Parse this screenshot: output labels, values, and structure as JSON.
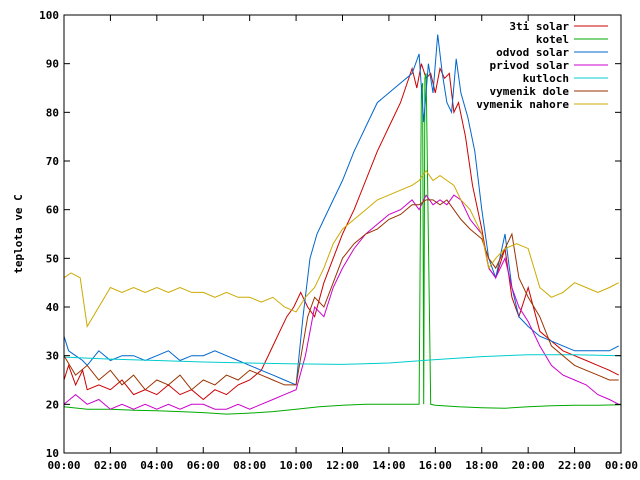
{
  "chart_data": {
    "type": "line",
    "title": "",
    "xlabel": "",
    "ylabel": "teplota ve C",
    "xlim": [
      0,
      24
    ],
    "ylim": [
      10,
      100
    ],
    "grid": false,
    "legend_position": "top-right",
    "x_tick_labels": [
      "00:00",
      "02:00",
      "04:00",
      "06:00",
      "08:00",
      "10:00",
      "12:00",
      "14:00",
      "16:00",
      "18:00",
      "20:00",
      "22:00",
      "00:00"
    ],
    "y_tick_labels": [
      "10",
      "20",
      "30",
      "40",
      "50",
      "60",
      "70",
      "80",
      "90",
      "100"
    ],
    "series": [
      {
        "name": "3ti solar",
        "color": "#cc0000",
        "x": [
          0,
          0.2,
          0.5,
          0.8,
          1.0,
          1.5,
          2.0,
          2.5,
          3.0,
          3.5,
          4.0,
          4.5,
          5.0,
          5.5,
          6.0,
          6.5,
          7.0,
          7.5,
          8.0,
          8.5,
          9.0,
          9.3,
          9.6,
          9.9,
          10.2,
          10.5,
          10.8,
          11.2,
          11.6,
          12.0,
          12.5,
          13.0,
          13.5,
          14.0,
          14.5,
          15.0,
          15.2,
          15.4,
          15.6,
          15.8,
          16.0,
          16.2,
          16.4,
          16.6,
          16.8,
          17.0,
          17.3,
          17.6,
          18.0,
          18.3,
          18.6,
          19.0,
          19.3,
          19.6,
          20.0,
          20.5,
          21.0,
          21.5,
          22.0,
          22.5,
          23.0,
          23.5,
          23.9
        ],
        "values": [
          25,
          28,
          24,
          27,
          23,
          24,
          23,
          25,
          22,
          23,
          22,
          24,
          22,
          23,
          21,
          23,
          22,
          24,
          25,
          27,
          32,
          35,
          38,
          40,
          43,
          40,
          38,
          45,
          50,
          55,
          60,
          66,
          72,
          77,
          82,
          89,
          85,
          90,
          87,
          88,
          84,
          89,
          87,
          88,
          80,
          82,
          75,
          65,
          56,
          48,
          46,
          52,
          42,
          38,
          44,
          35,
          33,
          31,
          30,
          29,
          28,
          27,
          26
        ]
      },
      {
        "name": "kotel",
        "color": "#00aa00",
        "x": [
          0,
          1,
          2,
          3,
          4,
          5,
          6,
          7,
          8,
          9,
          10,
          11,
          12,
          13,
          14,
          15,
          15.3,
          15.4,
          15.45,
          15.5,
          15.55,
          15.6,
          15.8,
          16,
          17,
          18,
          19,
          20,
          21,
          22,
          23,
          24
        ],
        "values": [
          19.5,
          19,
          19,
          18.8,
          18.7,
          18.5,
          18.3,
          18,
          18.2,
          18.5,
          19,
          19.5,
          19.8,
          20,
          20,
          20,
          20,
          85,
          86,
          20,
          87,
          88,
          20,
          19.8,
          19.5,
          19.3,
          19.2,
          19.5,
          19.7,
          19.8,
          19.8,
          19.9
        ]
      },
      {
        "name": "odvod solar",
        "color": "#0066cc",
        "x": [
          0,
          0.2,
          0.5,
          0.8,
          1.0,
          1.5,
          2.0,
          2.5,
          3.0,
          3.5,
          4.0,
          4.5,
          5.0,
          5.5,
          6.0,
          6.5,
          7.0,
          7.5,
          8.0,
          8.5,
          9.0,
          9.5,
          10.0,
          10.3,
          10.6,
          10.9,
          11.2,
          11.6,
          12.0,
          12.5,
          13.0,
          13.5,
          14.0,
          14.5,
          15.0,
          15.3,
          15.5,
          15.7,
          15.9,
          16.1,
          16.3,
          16.5,
          16.7,
          16.9,
          17.1,
          17.4,
          17.7,
          18.0,
          18.3,
          18.6,
          19.0,
          19.3,
          19.6,
          20.0,
          20.5,
          21.0,
          21.5,
          22.0,
          22.5,
          23.0,
          23.5,
          23.9
        ],
        "values": [
          34,
          31,
          30,
          29,
          28,
          31,
          29,
          30,
          30,
          29,
          30,
          31,
          29,
          30,
          30,
          31,
          30,
          29,
          28,
          27,
          26,
          25,
          24,
          38,
          50,
          55,
          58,
          62,
          66,
          72,
          77,
          82,
          84,
          86,
          88,
          92,
          78,
          90,
          84,
          96,
          88,
          82,
          80,
          91,
          84,
          79,
          72,
          60,
          50,
          46,
          55,
          44,
          38,
          36,
          34,
          33,
          32,
          31,
          31,
          31,
          31,
          32
        ]
      },
      {
        "name": "privod solar",
        "color": "#cc00cc",
        "x": [
          0,
          0.5,
          1.0,
          1.5,
          2.0,
          2.5,
          3.0,
          3.5,
          4.0,
          4.5,
          5.0,
          5.5,
          6.0,
          6.5,
          7.0,
          7.5,
          8.0,
          8.5,
          9.0,
          9.5,
          10.0,
          10.4,
          10.8,
          11.2,
          11.6,
          12.0,
          12.5,
          13.0,
          13.5,
          14.0,
          14.5,
          15.0,
          15.3,
          15.6,
          15.9,
          16.2,
          16.5,
          16.8,
          17.1,
          17.5,
          18.0,
          18.3,
          18.6,
          19.0,
          19.3,
          19.6,
          20.0,
          20.5,
          21.0,
          21.5,
          22.0,
          22.5,
          23.0,
          23.5,
          23.9
        ],
        "values": [
          20,
          22,
          20,
          21,
          19,
          20,
          19,
          20,
          19,
          20,
          19,
          20,
          20,
          19,
          19,
          20,
          19,
          20,
          21,
          22,
          23,
          30,
          40,
          38,
          44,
          48,
          52,
          55,
          57,
          59,
          60,
          62,
          60,
          63,
          61,
          62,
          61,
          63,
          62,
          58,
          55,
          48,
          46,
          50,
          44,
          40,
          37,
          32,
          28,
          26,
          25,
          24,
          22,
          21,
          20
        ]
      },
      {
        "name": "kutloch",
        "color": "#00cccc",
        "x": [
          0,
          2,
          4,
          6,
          8,
          10,
          12,
          14,
          16,
          18,
          20,
          22,
          24
        ],
        "values": [
          29.7,
          29.3,
          29.0,
          28.7,
          28.5,
          28.3,
          28.2,
          28.5,
          29.2,
          29.8,
          30.2,
          30.2,
          30.0
        ]
      },
      {
        "name": "vymenik dole",
        "color": "#993300",
        "x": [
          0,
          0.5,
          1.0,
          1.5,
          2.0,
          2.5,
          3.0,
          3.5,
          4.0,
          4.5,
          5.0,
          5.5,
          6.0,
          6.5,
          7.0,
          7.5,
          8.0,
          8.5,
          9.0,
          9.5,
          10.0,
          10.5,
          10.8,
          11.2,
          11.6,
          12.0,
          12.5,
          13.0,
          13.5,
          14.0,
          14.5,
          15.0,
          15.3,
          15.6,
          15.9,
          16.2,
          16.5,
          16.8,
          17.1,
          17.5,
          18.0,
          18.3,
          18.6,
          19.0,
          19.3,
          19.6,
          20.0,
          20.5,
          21.0,
          21.5,
          22.0,
          22.5,
          23.0,
          23.5,
          23.9
        ],
        "values": [
          30,
          26,
          28,
          25,
          27,
          24,
          26,
          23,
          25,
          24,
          26,
          23,
          25,
          24,
          26,
          25,
          27,
          26,
          25,
          24,
          24,
          38,
          42,
          40,
          45,
          50,
          53,
          55,
          56,
          58,
          59,
          61,
          61,
          62,
          62,
          61,
          62,
          60,
          58,
          56,
          54,
          50,
          48,
          52,
          55,
          46,
          42,
          38,
          32,
          30,
          28,
          27,
          26,
          25,
          25
        ]
      },
      {
        "name": "vymenik nahore",
        "color": "#ccaa00",
        "x": [
          0,
          0.3,
          0.7,
          1.0,
          1.5,
          2.0,
          2.5,
          3.0,
          3.5,
          4.0,
          4.5,
          5.0,
          5.5,
          6.0,
          6.5,
          7.0,
          7.5,
          8.0,
          8.5,
          9.0,
          9.5,
          10.0,
          10.4,
          10.8,
          11.2,
          11.6,
          12.0,
          12.5,
          13.0,
          13.5,
          14.0,
          14.5,
          15.0,
          15.3,
          15.6,
          15.9,
          16.2,
          16.5,
          16.8,
          17.1,
          17.5,
          18.0,
          18.3,
          18.6,
          19.0,
          19.5,
          20.0,
          20.5,
          21.0,
          21.5,
          22.0,
          22.5,
          23.0,
          23.5,
          23.9
        ],
        "values": [
          46,
          47,
          46,
          36,
          40,
          44,
          43,
          44,
          43,
          44,
          43,
          44,
          43,
          43,
          42,
          43,
          42,
          42,
          41,
          42,
          40,
          39,
          42,
          44,
          48,
          53,
          56,
          58,
          60,
          62,
          63,
          64,
          65,
          66,
          68,
          66,
          67,
          66,
          65,
          62,
          60,
          55,
          48,
          50,
          52,
          53,
          52,
          44,
          42,
          43,
          45,
          44,
          43,
          44,
          45
        ]
      }
    ]
  }
}
